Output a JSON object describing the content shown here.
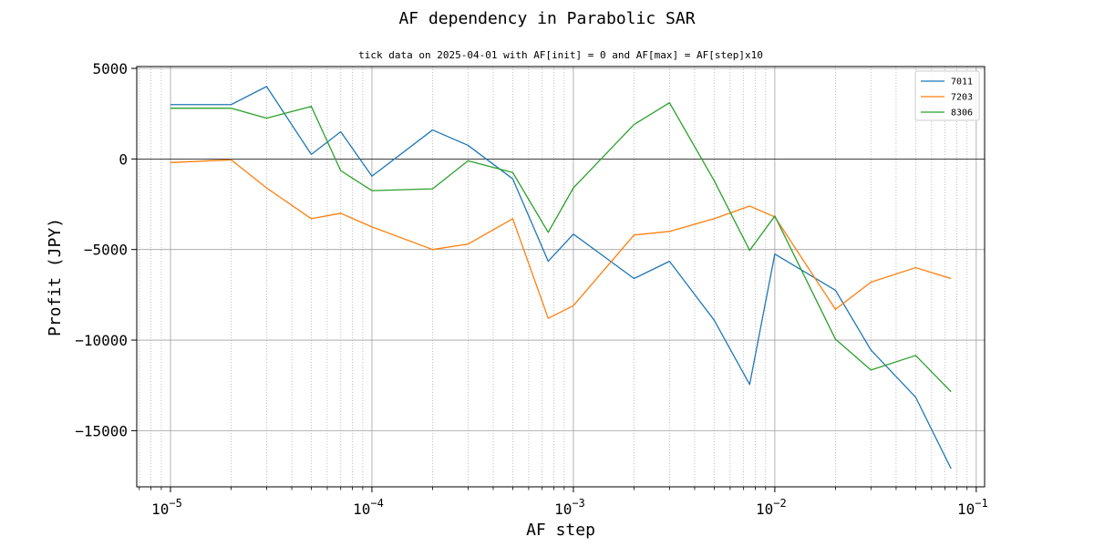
{
  "chart_data": {
    "type": "line",
    "title": "AF dependency in Parabolic SAR",
    "subtitle": "tick data on 2025-04-01 with AF[init] = 0 and AF[max] = AF[step]x10",
    "xlabel": "AF step",
    "ylabel": "Profit (JPY)",
    "x_scale": "log",
    "xlim": [
      6.8e-06,
      0.11
    ],
    "ylim": [
      -18100,
      5100
    ],
    "grid": true,
    "legend_position": "top-right",
    "x_ticks": [
      {
        "value": 1e-05,
        "base": "10",
        "exp": "−5"
      },
      {
        "value": 0.0001,
        "base": "10",
        "exp": "−4"
      },
      {
        "value": 0.001,
        "base": "10",
        "exp": "−3"
      },
      {
        "value": 0.01,
        "base": "10",
        "exp": "−2"
      },
      {
        "value": 0.1,
        "base": "10",
        "exp": "−1"
      }
    ],
    "y_ticks": [
      {
        "value": 5000,
        "label": "5000"
      },
      {
        "value": 0,
        "label": "0"
      },
      {
        "value": -5000,
        "label": "−5000"
      },
      {
        "value": -10000,
        "label": "−10000"
      },
      {
        "value": -15000,
        "label": "−15000"
      }
    ],
    "x": [
      1e-05,
      2e-05,
      3e-05,
      5e-05,
      7e-05,
      0.0001,
      0.0002,
      0.0003,
      0.0005,
      0.00075,
      0.001,
      0.002,
      0.003,
      0.005,
      0.0075,
      0.01,
      0.02,
      0.03,
      0.05,
      0.075
    ],
    "series": [
      {
        "name": "7011",
        "color": "#1f77b4",
        "values": [
          3000,
          3000,
          4000,
          250,
          1500,
          -950,
          1600,
          750,
          -1100,
          -5650,
          -4150,
          -6600,
          -5650,
          -8900,
          -12450,
          -5250,
          -7250,
          -10550,
          -13150,
          -17100
        ]
      },
      {
        "name": "7203",
        "color": "#ff7f0e",
        "values": [
          -200,
          -50,
          -1600,
          -3300,
          -3000,
          -3750,
          -5000,
          -4700,
          -3300,
          -8800,
          -8100,
          -4200,
          -4000,
          -3300,
          -2600,
          -3200,
          -8300,
          -6800,
          -6000,
          -6600
        ]
      },
      {
        "name": "8306",
        "color": "#2ca02c",
        "values": [
          2800,
          2800,
          2250,
          2900,
          -650,
          -1750,
          -1650,
          -100,
          -750,
          -4050,
          -1600,
          1900,
          3100,
          -1200,
          -5050,
          -3150,
          -9950,
          -11650,
          -10850,
          -12850
        ]
      }
    ]
  }
}
